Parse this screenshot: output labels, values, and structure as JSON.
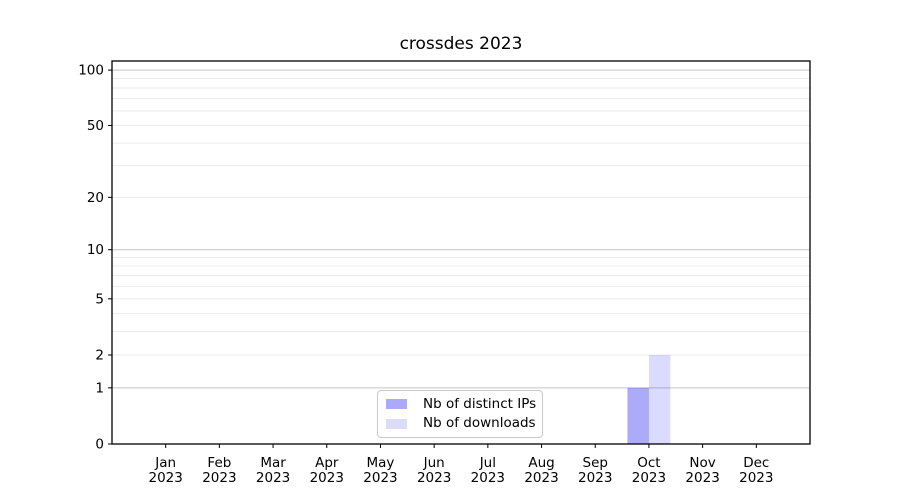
{
  "chart_data": {
    "type": "bar",
    "title": "crossdes 2023",
    "categories": [
      {
        "month": "Jan",
        "year": "2023"
      },
      {
        "month": "Feb",
        "year": "2023"
      },
      {
        "month": "Mar",
        "year": "2023"
      },
      {
        "month": "Apr",
        "year": "2023"
      },
      {
        "month": "May",
        "year": "2023"
      },
      {
        "month": "Jun",
        "year": "2023"
      },
      {
        "month": "Jul",
        "year": "2023"
      },
      {
        "month": "Aug",
        "year": "2023"
      },
      {
        "month": "Sep",
        "year": "2023"
      },
      {
        "month": "Oct",
        "year": "2023"
      },
      {
        "month": "Nov",
        "year": "2023"
      },
      {
        "month": "Dec",
        "year": "2023"
      }
    ],
    "series": [
      {
        "name": "Nb of distinct IPs",
        "values": [
          0,
          0,
          0,
          0,
          0,
          0,
          0,
          0,
          0,
          1,
          0,
          0
        ],
        "swatch_color": "#abaaf8",
        "fill_color": "#0000f0",
        "fill_opacity": 0.33
      },
      {
        "name": "Nb of downloads",
        "values": [
          0,
          0,
          0,
          0,
          0,
          0,
          0,
          0,
          0,
          2,
          0,
          0
        ],
        "swatch_color": "#dcdcf9",
        "fill_color": "#0000f0",
        "fill_opacity": 0.14
      }
    ],
    "xlabel": "",
    "ylabel": "",
    "yscale": "log1p",
    "ylim": [
      0,
      112
    ],
    "yticks": [
      0,
      1,
      2,
      5,
      10,
      20,
      50,
      100
    ],
    "grid": {
      "major_values": [
        1,
        10,
        100
      ],
      "minor_values": [
        2,
        3,
        4,
        5,
        6,
        7,
        8,
        9,
        20,
        30,
        40,
        50,
        60,
        70,
        80,
        90
      ],
      "major_color": "#c5c5c5",
      "minor_color": "#ebebeb",
      "on": true
    },
    "legend_position": "lower center",
    "bar_width_frac": 0.4,
    "axis_color": "#000000",
    "text_color": "#000000"
  }
}
